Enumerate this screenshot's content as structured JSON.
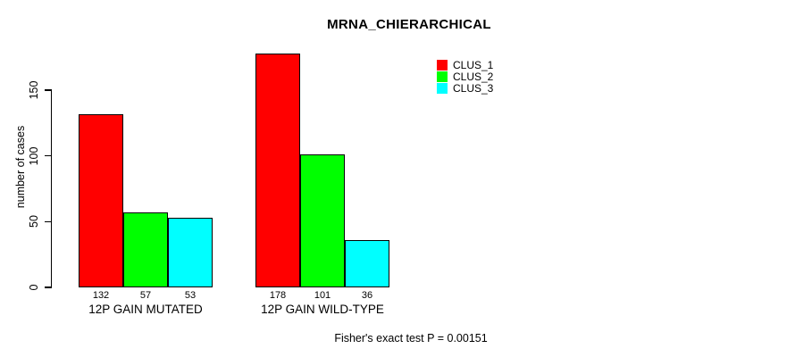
{
  "chart_data": {
    "type": "bar",
    "title": "MRNA_CHIERARCHICAL",
    "ylabel": "number of cases",
    "xlabel": "",
    "categories": [
      "12P GAIN MUTATED",
      "12P GAIN WILD-TYPE"
    ],
    "series": [
      {
        "name": "CLUS_1",
        "color": "#FF0000",
        "values": [
          132,
          178
        ]
      },
      {
        "name": "CLUS_2",
        "color": "#00FF00",
        "values": [
          57,
          101
        ]
      },
      {
        "name": "CLUS_3",
        "color": "#00FFFF",
        "values": [
          53,
          36
        ]
      }
    ],
    "bar_value_labels": [
      [
        132,
        57,
        53
      ],
      [
        178,
        101,
        36
      ]
    ],
    "yticks": [
      0,
      50,
      100,
      150
    ],
    "ylim": [
      0,
      185
    ],
    "grid": false,
    "legend": {
      "position": "top-right",
      "labels": [
        "CLUS_1",
        "CLUS_2",
        "CLUS_3"
      ]
    },
    "annotation": "Fisher's exact test P = 0.00151"
  }
}
